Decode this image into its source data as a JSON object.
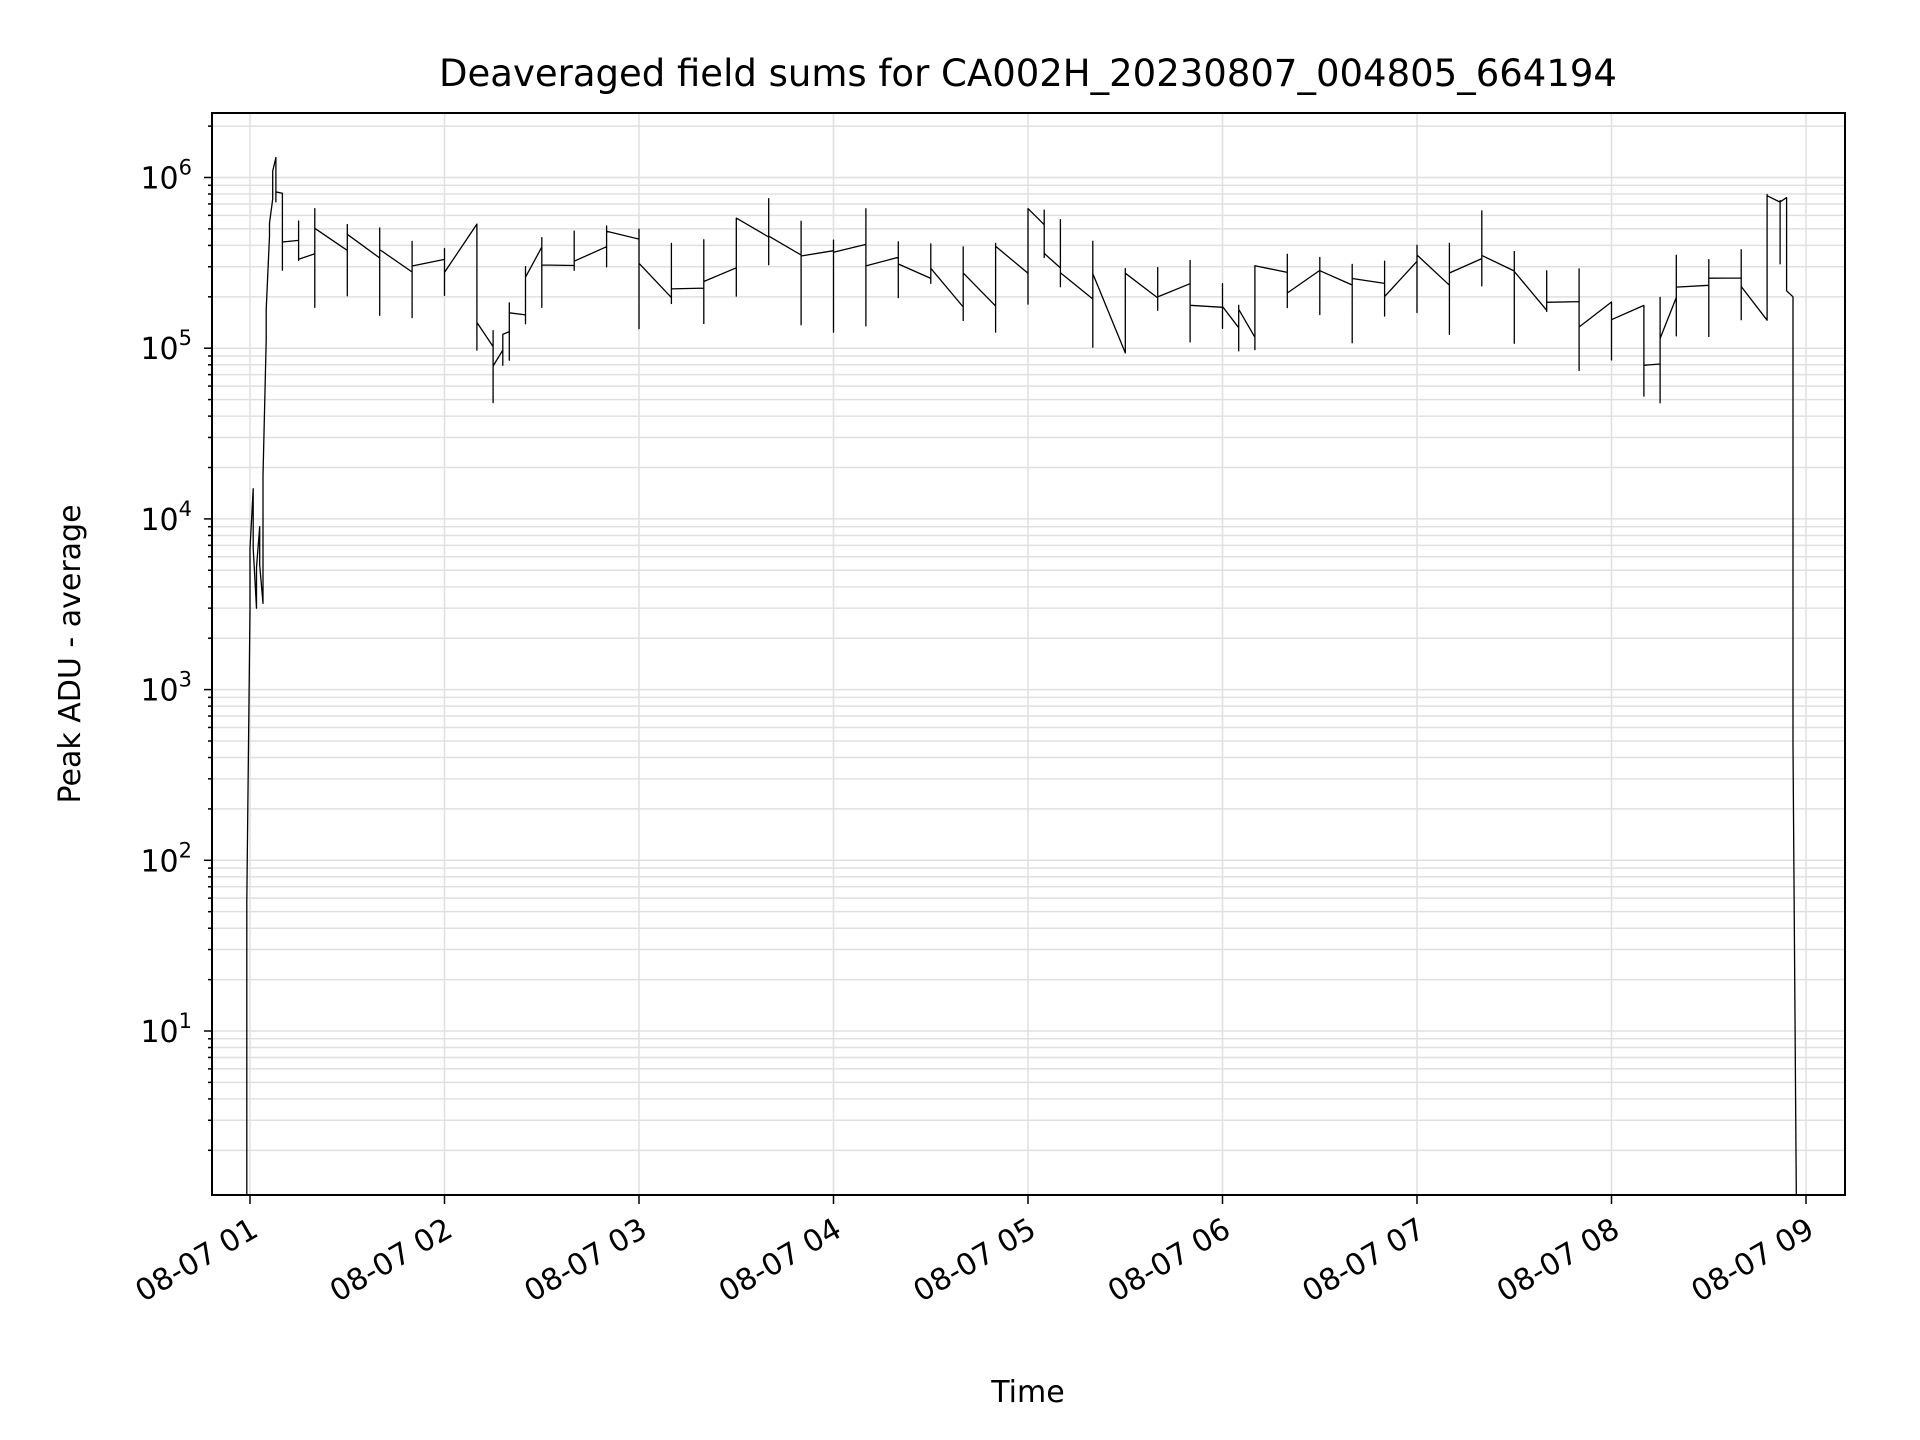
{
  "chart_data": {
    "type": "line",
    "title": "Deaveraged field sums for CA002H_20230807_004805_664194",
    "xlabel": "Time",
    "ylabel": "Peak ADU - average",
    "yscale": "log",
    "grid": true,
    "legend": "none",
    "colors": {
      "line": "#000000",
      "grid": "#e0e0e0",
      "frame": "#000000",
      "background": "#ffffff"
    },
    "x_ticks": [
      "08-07 01",
      "08-07 02",
      "08-07 03",
      "08-07 04",
      "08-07 05",
      "08-07 06",
      "08-07 07",
      "08-07 08",
      "08-07 09"
    ],
    "y_ticks": [
      {
        "base": "10",
        "exp": "1",
        "value": 10
      },
      {
        "base": "10",
        "exp": "2",
        "value": 100
      },
      {
        "base": "10",
        "exp": "3",
        "value": 1000
      },
      {
        "base": "10",
        "exp": "4",
        "value": 10000
      },
      {
        "base": "10",
        "exp": "5",
        "value": 100000
      },
      {
        "base": "10",
        "exp": "6",
        "value": 1000000
      }
    ],
    "xlim": [
      "2023-08-07 00:48",
      "2023-08-07 09:15"
    ],
    "ylim": [
      1.1,
      2300000
    ],
    "series": [
      {
        "x": [
          "2023-08-07 00:59",
          "2023-08-07 01:00",
          "2023-08-07 01:01",
          "2023-08-07 01:02",
          "2023-08-07 01:03",
          "2023-08-07 01:04",
          "2023-08-07 01:05",
          "2023-08-07 01:06",
          "2023-08-07 01:07",
          "2023-08-07 01:08",
          "2023-08-07 01:10",
          "2023-08-07 01:15",
          "2023-08-07 01:20",
          "2023-08-07 01:30",
          "2023-08-07 01:40",
          "2023-08-07 01:50",
          "2023-08-07 02:00",
          "2023-08-07 02:10",
          "2023-08-07 02:15",
          "2023-08-07 02:18",
          "2023-08-07 02:20",
          "2023-08-07 02:25",
          "2023-08-07 02:30",
          "2023-08-07 02:40",
          "2023-08-07 02:50",
          "2023-08-07 03:00",
          "2023-08-07 03:10",
          "2023-08-07 03:20",
          "2023-08-07 03:30",
          "2023-08-07 03:40",
          "2023-08-07 03:50",
          "2023-08-07 04:00",
          "2023-08-07 04:10",
          "2023-08-07 04:20",
          "2023-08-07 04:30",
          "2023-08-07 04:40",
          "2023-08-07 04:50",
          "2023-08-07 05:00",
          "2023-08-07 05:05",
          "2023-08-07 05:10",
          "2023-08-07 05:20",
          "2023-08-07 05:30",
          "2023-08-07 05:40",
          "2023-08-07 05:50",
          "2023-08-07 06:00",
          "2023-08-07 06:05",
          "2023-08-07 06:10",
          "2023-08-07 06:20",
          "2023-08-07 06:30",
          "2023-08-07 06:40",
          "2023-08-07 06:50",
          "2023-08-07 07:00",
          "2023-08-07 07:10",
          "2023-08-07 07:20",
          "2023-08-07 07:30",
          "2023-08-07 07:40",
          "2023-08-07 07:50",
          "2023-08-07 08:00",
          "2023-08-07 08:10",
          "2023-08-07 08:15",
          "2023-08-07 08:20",
          "2023-08-07 08:30",
          "2023-08-07 08:40",
          "2023-08-07 08:48",
          "2023-08-07 08:52",
          "2023-08-07 08:54",
          "2023-08-07 08:56",
          "2023-08-07 08:57"
        ],
        "y": [
          1.1,
          3000,
          15000,
          3000,
          9000,
          3200,
          100000,
          500000,
          900000,
          1100000,
          750000,
          450000,
          400000,
          380000,
          420000,
          350000,
          300000,
          250000,
          130000,
          80000,
          100000,
          150000,
          300000,
          350000,
          380000,
          400000,
          350000,
          280000,
          300000,
          450000,
          380000,
          330000,
          320000,
          330000,
          300000,
          310000,
          300000,
          320000,
          550000,
          380000,
          250000,
          240000,
          220000,
          230000,
          180000,
          140000,
          150000,
          250000,
          280000,
          230000,
          240000,
          250000,
          300000,
          330000,
          280000,
          220000,
          200000,
          150000,
          110000,
          90000,
          150000,
          250000,
          260000,
          300000,
          800000,
          700000,
          200000,
          1.1
        ]
      }
    ]
  }
}
